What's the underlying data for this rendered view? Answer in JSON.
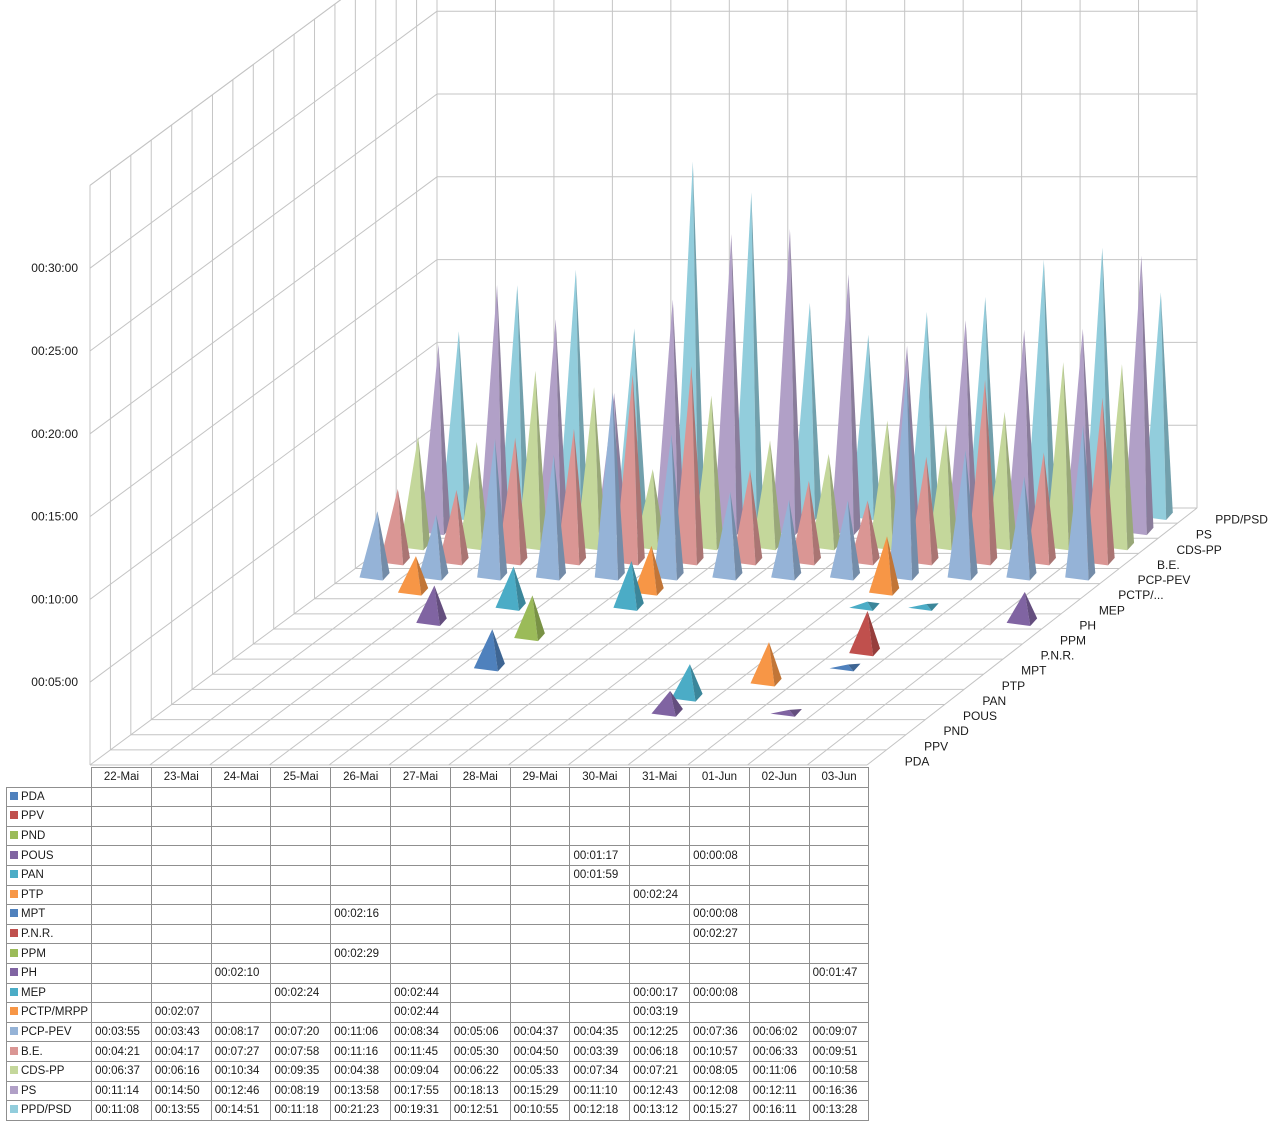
{
  "chart_data": {
    "type": "3d-pyramid-column-with-data-table",
    "value_axis": {
      "unit": "h:mm:ss",
      "tick_labels": [
        "00:05:00",
        "00:10:00",
        "00:15:00",
        "00:20:00",
        "00:25:00",
        "00:30:00"
      ],
      "max": "00:35:00",
      "major_step": "00:05:00"
    },
    "categories": [
      "22-Mai",
      "23-Mai",
      "24-Mai",
      "25-Mai",
      "26-Mai",
      "27-Mai",
      "28-Mai",
      "29-Mai",
      "30-Mai",
      "31-Mai",
      "01-Jun",
      "02-Jun",
      "03-Jun"
    ],
    "depth_axis_labels": [
      "PDA",
      "PPV",
      "PND",
      "POUS",
      "PAN",
      "PTP",
      "MPT",
      "P.N.R.",
      "PPM",
      "PH",
      "MEP",
      "PCTP/...",
      "PCP-PEV",
      "B.E.",
      "CDS-PP",
      "PS",
      "PPD/PSD"
    ],
    "series": [
      {
        "name": "PDA",
        "color": "#4f81bd",
        "values": [
          "",
          "",
          "",
          "",
          "",
          "",
          "",
          "",
          "",
          "",
          "",
          "",
          ""
        ]
      },
      {
        "name": "PPV",
        "color": "#c0504d",
        "values": [
          "",
          "",
          "",
          "",
          "",
          "",
          "",
          "",
          "",
          "",
          "",
          "",
          ""
        ]
      },
      {
        "name": "PND",
        "color": "#9bbb59",
        "values": [
          "",
          "",
          "",
          "",
          "",
          "",
          "",
          "",
          "",
          "",
          "",
          "",
          ""
        ]
      },
      {
        "name": "POUS",
        "color": "#8064a2",
        "values": [
          "",
          "",
          "",
          "",
          "",
          "",
          "",
          "",
          "00:01:17",
          "",
          "00:00:08",
          "",
          ""
        ]
      },
      {
        "name": "PAN",
        "color": "#4bacc6",
        "values": [
          "",
          "",
          "",
          "",
          "",
          "",
          "",
          "",
          "00:01:59",
          "",
          "",
          "",
          ""
        ]
      },
      {
        "name": "PTP",
        "color": "#f79646",
        "values": [
          "",
          "",
          "",
          "",
          "",
          "",
          "",
          "",
          "",
          "00:02:24",
          "",
          "",
          ""
        ]
      },
      {
        "name": "MPT",
        "color": "#4f81bd",
        "values": [
          "",
          "",
          "",
          "",
          "00:02:16",
          "",
          "",
          "",
          "",
          "",
          "00:00:08",
          "",
          ""
        ]
      },
      {
        "name": "P.N.R.",
        "color": "#c0504d",
        "values": [
          "",
          "",
          "",
          "",
          "",
          "",
          "",
          "",
          "",
          "",
          "00:02:27",
          "",
          ""
        ]
      },
      {
        "name": "PPM",
        "color": "#9bbb59",
        "values": [
          "",
          "",
          "",
          "",
          "00:02:29",
          "",
          "",
          "",
          "",
          "",
          "",
          "",
          ""
        ]
      },
      {
        "name": "PH",
        "color": "#8064a2",
        "values": [
          "",
          "",
          "00:02:10",
          "",
          "",
          "",
          "",
          "",
          "",
          "",
          "",
          "",
          "00:01:47"
        ]
      },
      {
        "name": "MEP",
        "color": "#4bacc6",
        "values": [
          "",
          "",
          "",
          "00:02:24",
          "",
          "00:02:44",
          "",
          "",
          "",
          "00:00:17",
          "00:00:08",
          "",
          ""
        ]
      },
      {
        "name": "PCTP/MRPP",
        "color": "#f79646",
        "values": [
          "",
          "00:02:07",
          "",
          "",
          "",
          "00:02:44",
          "",
          "",
          "",
          "00:03:19",
          "",
          "",
          ""
        ]
      },
      {
        "name": "PCP-PEV",
        "color": "#95b3d7",
        "values": [
          "00:03:55",
          "00:03:43",
          "00:08:17",
          "00:07:20",
          "00:11:06",
          "00:08:34",
          "00:05:06",
          "00:04:37",
          "00:04:35",
          "00:12:25",
          "00:07:36",
          "00:06:02",
          "00:09:07"
        ]
      },
      {
        "name": "B.E.",
        "color": "#da9694",
        "values": [
          "00:04:21",
          "00:04:17",
          "00:07:27",
          "00:07:58",
          "00:11:16",
          "00:11:45",
          "00:05:30",
          "00:04:50",
          "00:03:39",
          "00:06:18",
          "00:10:57",
          "00:06:33",
          "00:09:51"
        ]
      },
      {
        "name": "CDS-PP",
        "color": "#c4d79b",
        "values": [
          "00:06:37",
          "00:06:16",
          "00:10:34",
          "00:09:35",
          "00:04:38",
          "00:09:04",
          "00:06:22",
          "00:05:33",
          "00:07:34",
          "00:07:21",
          "00:08:05",
          "00:11:06",
          "00:10:58"
        ]
      },
      {
        "name": "PS",
        "color": "#b1a0c7",
        "values": [
          "00:11:14",
          "00:14:50",
          "00:12:46",
          "00:08:19",
          "00:13:58",
          "00:17:55",
          "00:18:13",
          "00:15:29",
          "00:11:10",
          "00:12:43",
          "00:12:08",
          "00:12:11",
          "00:16:36"
        ]
      },
      {
        "name": "PPD/PSD",
        "color": "#92cddc",
        "values": [
          "00:11:08",
          "00:13:55",
          "00:14:51",
          "00:11:18",
          "00:21:23",
          "00:19:31",
          "00:12:51",
          "00:10:55",
          "00:12:18",
          "00:13:12",
          "00:15:27",
          "00:16:11",
          "00:13:28"
        ]
      }
    ]
  }
}
